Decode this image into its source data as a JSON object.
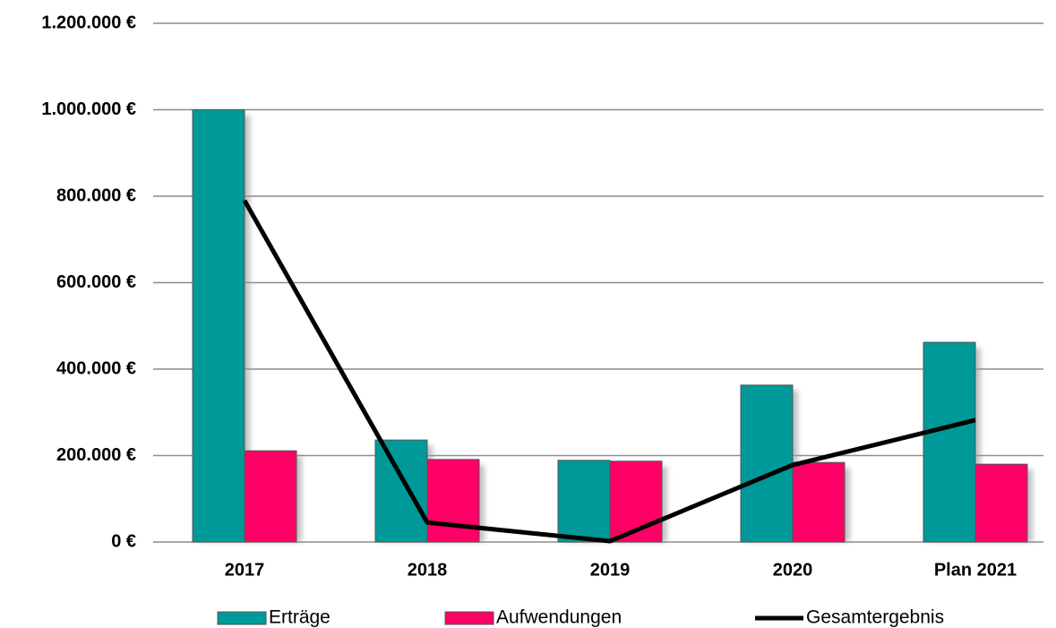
{
  "chart_data": {
    "type": "bar",
    "categories": [
      "2017",
      "2018",
      "2019",
      "2020",
      "Plan 2021"
    ],
    "series": [
      {
        "name": "Erträge",
        "type": "bar",
        "color": "#009999",
        "values": [
          1000000,
          236000,
          189000,
          363000,
          462000
        ]
      },
      {
        "name": "Aufwendungen",
        "type": "bar",
        "color": "#ff0066",
        "values": [
          211000,
          191000,
          187000,
          184000,
          180000
        ]
      },
      {
        "name": "Gesamtergebnis",
        "type": "line",
        "color": "#000000",
        "values": [
          790000,
          45000,
          2000,
          178000,
          282000
        ]
      }
    ],
    "ylim": [
      0,
      1200000
    ],
    "yticks": [
      {
        "value": 0,
        "label": "0 €"
      },
      {
        "value": 200000,
        "label": "200.000 €"
      },
      {
        "value": 400000,
        "label": "400.000 €"
      },
      {
        "value": 600000,
        "label": "600.000 €"
      },
      {
        "value": 800000,
        "label": "800.000 €"
      },
      {
        "value": 1000000,
        "label": "1.000.000 €"
      },
      {
        "value": 1200000,
        "label": "1.200.000 €"
      }
    ],
    "grid": true,
    "legend": "bottom"
  }
}
